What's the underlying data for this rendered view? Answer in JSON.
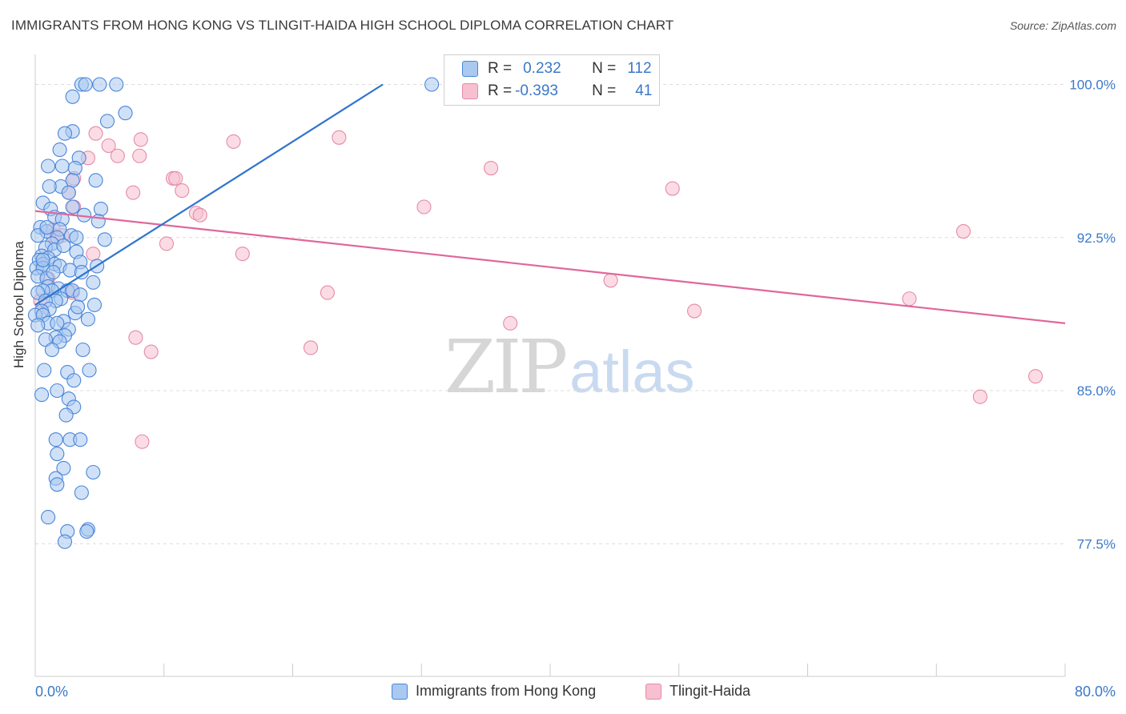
{
  "title": "IMMIGRANTS FROM HONG KONG VS TLINGIT-HAIDA HIGH SCHOOL DIPLOMA CORRELATION CHART",
  "source": "Source: ZipAtlas.com",
  "watermark": {
    "zip": "ZIP",
    "atlas": "atlas"
  },
  "legend": {
    "rows": [
      {
        "r_label": "R =",
        "r_value": "0.232",
        "n_label": "N =",
        "n_value": "112"
      },
      {
        "r_label": "R =",
        "r_value": "-0.393",
        "n_label": "N =",
        "n_value": "41"
      }
    ]
  },
  "colors": {
    "blue_fill": "#a9c9f0",
    "blue_stroke": "#4a86d8",
    "blue_line": "#2f74cf",
    "pink_fill": "#f7bfd0",
    "pink_stroke": "#e68aa8",
    "pink_line": "#e0679a",
    "axis_text": "#3b78c8",
    "grid": "#dcdcdc"
  },
  "chart_data": {
    "type": "scatter",
    "title": "IMMIGRANTS FROM HONG KONG VS TLINGIT-HAIDA HIGH SCHOOL DIPLOMA CORRELATION CHART",
    "xlabel": "",
    "ylabel": "High School Diploma",
    "xlim": [
      0,
      80
    ],
    "ylim": [
      71,
      101
    ],
    "x_tick_labels": [
      "0.0%",
      "80.0%"
    ],
    "y_ticks": [
      77.5,
      85.0,
      92.5,
      100.0
    ],
    "y_tick_labels": [
      "77.5%",
      "85.0%",
      "92.5%",
      "100.0%"
    ],
    "grid": true,
    "legend_position": "bottom",
    "series": [
      {
        "name": "Immigrants from Hong Kong",
        "color": "blue",
        "trend": {
          "x": [
            0,
            27
          ],
          "y": [
            89.2,
            100.0
          ]
        },
        "points": [
          [
            3.6,
            100
          ],
          [
            3.9,
            100
          ],
          [
            5,
            100
          ],
          [
            6.3,
            100
          ],
          [
            30.8,
            100
          ],
          [
            2.9,
            99.4
          ],
          [
            7,
            98.6
          ],
          [
            5.6,
            98.2
          ],
          [
            2.9,
            97.7
          ],
          [
            2.3,
            97.6
          ],
          [
            1.9,
            96.8
          ],
          [
            3.4,
            96.4
          ],
          [
            1,
            96
          ],
          [
            2.1,
            96
          ],
          [
            3.1,
            95.9
          ],
          [
            2.9,
            95.3
          ],
          [
            4.7,
            95.3
          ],
          [
            2.0,
            95.0
          ],
          [
            1.1,
            95.0
          ],
          [
            2.6,
            94.7
          ],
          [
            0.6,
            94.2
          ],
          [
            2.9,
            94.0
          ],
          [
            1.2,
            93.9
          ],
          [
            5.1,
            93.9
          ],
          [
            3.8,
            93.6
          ],
          [
            1.5,
            93.5
          ],
          [
            2.1,
            93.4
          ],
          [
            4.9,
            93.3
          ],
          [
            0.4,
            93.0
          ],
          [
            1.9,
            92.9
          ],
          [
            0.9,
            92.8
          ],
          [
            2.8,
            92.6
          ],
          [
            0.2,
            92.6
          ],
          [
            1.7,
            92.5
          ],
          [
            3.2,
            92.5
          ],
          [
            5.4,
            92.4
          ],
          [
            1.3,
            92.2
          ],
          [
            0.8,
            92.0
          ],
          [
            1.5,
            91.9
          ],
          [
            3.2,
            91.8
          ],
          [
            0.5,
            91.6
          ],
          [
            1.0,
            91.5
          ],
          [
            0.3,
            91.4
          ],
          [
            3.5,
            91.3
          ],
          [
            0.6,
            91.2
          ],
          [
            1.5,
            91.2
          ],
          [
            1.9,
            91.1
          ],
          [
            4.8,
            91.1
          ],
          [
            0.1,
            91.0
          ],
          [
            0.6,
            91.0
          ],
          [
            2.7,
            90.9
          ],
          [
            3.6,
            90.8
          ],
          [
            0.2,
            90.6
          ],
          [
            0.9,
            90.5
          ],
          [
            4.5,
            90.3
          ],
          [
            1.0,
            90.1
          ],
          [
            1.8,
            90.0
          ],
          [
            2.5,
            89.9
          ],
          [
            1.3,
            89.9
          ],
          [
            2.9,
            89.9
          ],
          [
            0.6,
            89.9
          ],
          [
            0.2,
            89.8
          ],
          [
            3.5,
            89.7
          ],
          [
            2.0,
            89.5
          ],
          [
            1.6,
            89.4
          ],
          [
            0.8,
            89.4
          ],
          [
            4.6,
            89.2
          ],
          [
            1.1,
            89.0
          ],
          [
            0.5,
            88.9
          ],
          [
            3.1,
            88.8
          ],
          [
            0.0,
            88.7
          ],
          [
            0.6,
            88.7
          ],
          [
            4.1,
            88.5
          ],
          [
            2.2,
            88.4
          ],
          [
            1.0,
            88.3
          ],
          [
            0.2,
            88.2
          ],
          [
            2.6,
            88.0
          ],
          [
            2.3,
            87.7
          ],
          [
            1.6,
            87.6
          ],
          [
            0.8,
            87.5
          ],
          [
            1.9,
            87.4
          ],
          [
            1.3,
            87.0
          ],
          [
            3.7,
            87.0
          ],
          [
            0.7,
            86.0
          ],
          [
            4.2,
            86.0
          ],
          [
            2.5,
            85.9
          ],
          [
            3.0,
            85.5
          ],
          [
            1.7,
            85.0
          ],
          [
            0.5,
            84.8
          ],
          [
            2.6,
            84.6
          ],
          [
            3.0,
            84.2
          ],
          [
            2.4,
            83.8
          ],
          [
            1.6,
            82.6
          ],
          [
            2.7,
            82.6
          ],
          [
            3.5,
            82.6
          ],
          [
            1.7,
            81.9
          ],
          [
            2.2,
            81.2
          ],
          [
            4.5,
            81.0
          ],
          [
            1.6,
            80.7
          ],
          [
            1.7,
            80.4
          ],
          [
            3.6,
            80.0
          ],
          [
            1.0,
            78.8
          ],
          [
            2.5,
            78.1
          ],
          [
            4.1,
            78.2
          ],
          [
            2.3,
            77.6
          ],
          [
            4.0,
            78.1
          ],
          [
            0.6,
            91.4
          ],
          [
            1.4,
            90.8
          ],
          [
            2.2,
            92.1
          ],
          [
            3.3,
            89.1
          ],
          [
            0.9,
            93.0
          ],
          [
            1.7,
            88.3
          ]
        ]
      },
      {
        "name": "Tlingit-Haida",
        "color": "pink",
        "trend": {
          "x": [
            0,
            80
          ],
          "y": [
            93.8,
            88.3
          ]
        },
        "points": [
          [
            4.7,
            97.6
          ],
          [
            8.2,
            97.3
          ],
          [
            15.4,
            97.2
          ],
          [
            23.6,
            97.4
          ],
          [
            5.7,
            97.0
          ],
          [
            6.4,
            96.5
          ],
          [
            8.1,
            96.5
          ],
          [
            4.1,
            96.4
          ],
          [
            35.4,
            95.9
          ],
          [
            3.0,
            95.4
          ],
          [
            10.7,
            95.4
          ],
          [
            10.9,
            95.4
          ],
          [
            49.5,
            94.9
          ],
          [
            2.6,
            94.7
          ],
          [
            7.6,
            94.7
          ],
          [
            11.4,
            94.8
          ],
          [
            3.0,
            94.0
          ],
          [
            30.2,
            94.0
          ],
          [
            12.5,
            93.7
          ],
          [
            12.8,
            93.6
          ],
          [
            1.4,
            92.9
          ],
          [
            1.4,
            92.6
          ],
          [
            2.1,
            92.6
          ],
          [
            10.2,
            92.2
          ],
          [
            72.1,
            92.8
          ],
          [
            16.1,
            91.7
          ],
          [
            4.5,
            91.7
          ],
          [
            44.7,
            90.4
          ],
          [
            22.7,
            89.8
          ],
          [
            67.9,
            89.5
          ],
          [
            0.4,
            89.4
          ],
          [
            51.2,
            88.9
          ],
          [
            36.9,
            88.3
          ],
          [
            7.8,
            87.6
          ],
          [
            21.4,
            87.1
          ],
          [
            9.0,
            86.9
          ],
          [
            77.7,
            85.7
          ],
          [
            73.4,
            84.7
          ],
          [
            8.3,
            82.5
          ],
          [
            1.0,
            90.5
          ],
          [
            2.9,
            89.8
          ]
        ]
      }
    ]
  },
  "bottom_legend": {
    "items": [
      {
        "label": "Immigrants from Hong Kong"
      },
      {
        "label": "Tlingit-Haida"
      }
    ]
  }
}
